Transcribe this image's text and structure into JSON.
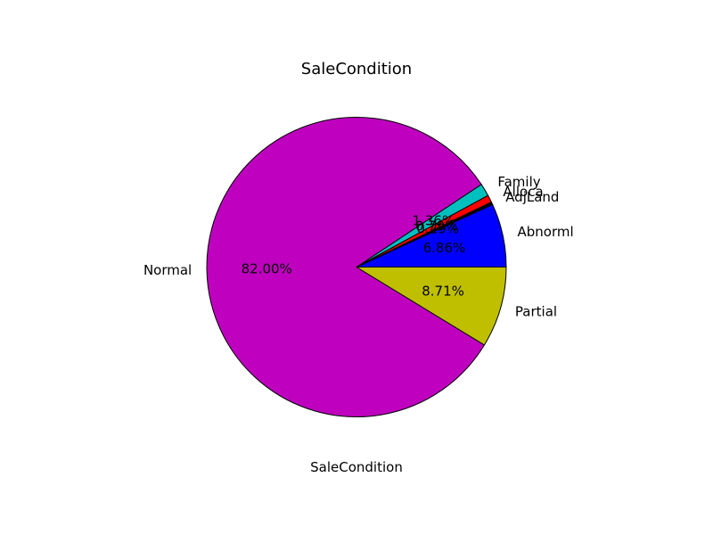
{
  "chart_data": {
    "type": "pie",
    "title": "SaleCondition",
    "xlabel": "SaleCondition",
    "start_angle_deg": 0,
    "direction": "counterclockwise",
    "slices": [
      {
        "label": "Abnorml",
        "value": 6.86,
        "pct_label": "6.86%",
        "color": "#0000ff"
      },
      {
        "label": "AdjLand",
        "value": 0.29,
        "pct_label": "0.29%",
        "color": "#000000"
      },
      {
        "label": "Alloca",
        "value": 0.79,
        "pct_label": "0.79%",
        "color": "#ff0000"
      },
      {
        "label": "Family",
        "value": 1.36,
        "pct_label": "1.36%",
        "color": "#00bfbf"
      },
      {
        "label": "Normal",
        "value": 82.0,
        "pct_label": "82.00%",
        "color": "#bf00bf"
      },
      {
        "label": "Partial",
        "value": 8.71,
        "pct_label": "8.71%",
        "color": "#bfbf00"
      }
    ]
  }
}
